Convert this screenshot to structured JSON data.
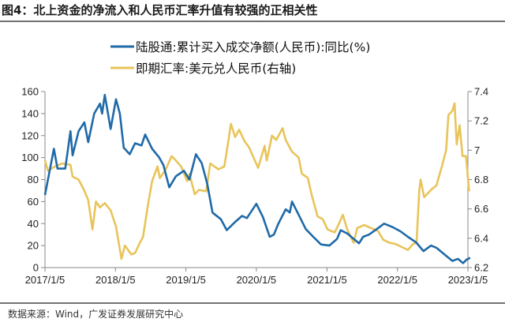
{
  "chart_data": {
    "type": "line",
    "title": "图4：北上资金的净流入和人民币汇率升值有较强的正相关性",
    "source": "数据来源：Wind，广发证券发展研究中心",
    "x_ticks": [
      "2017/1/5",
      "2018/1/5",
      "2019/1/5",
      "2020/1/5",
      "2021/1/5",
      "2022/1/5",
      "2023/1/5"
    ],
    "y_left": {
      "range": [
        0,
        160
      ],
      "ticks": [
        "0",
        "20",
        "40",
        "60",
        "80",
        "100",
        "120",
        "140",
        "160"
      ]
    },
    "y_right": {
      "range": [
        6.2,
        7.4
      ],
      "ticks": [
        "6.2",
        "6.4",
        "6.6",
        "6.8",
        "7",
        "7.2",
        "7.4"
      ]
    },
    "grid": false,
    "legend_placement": "top-center",
    "series": [
      {
        "name": "陆股通:累计买入成交净额(人民币):同比(%)",
        "color": "#1f6aa8",
        "axis": "left",
        "x": [
          "2017-01-05",
          "2017-02-20",
          "2017-03-11",
          "2017-04-20",
          "2017-05-17",
          "2017-05-28",
          "2017-06-28",
          "2017-07-28",
          "2017-08-17",
          "2017-09-17",
          "2017-10-17",
          "2017-10-28",
          "2017-11-11",
          "2017-12-11",
          "2018-01-08",
          "2018-01-28",
          "2018-02-17",
          "2018-03-20",
          "2018-04-17",
          "2018-05-20",
          "2018-06-08",
          "2018-07-14",
          "2018-08-20",
          "2018-09-11",
          "2018-10-11",
          "2018-11-14",
          "2018-12-26",
          "2019-01-23",
          "2019-02-26",
          "2019-03-28",
          "2019-04-26",
          "2019-05-23",
          "2019-07-05",
          "2019-08-05",
          "2019-09-14",
          "2019-10-23",
          "2019-11-17",
          "2020-01-05",
          "2020-02-08",
          "2020-03-14",
          "2020-04-05",
          "2020-04-28",
          "2020-06-05",
          "2020-06-26",
          "2020-07-08",
          "2020-08-11",
          "2020-09-17",
          "2020-10-26",
          "2020-12-05",
          "2021-01-17",
          "2021-02-26",
          "2021-03-17",
          "2021-04-20",
          "2021-05-17",
          "2021-06-20",
          "2021-07-11",
          "2021-08-11",
          "2021-09-20",
          "2021-10-28",
          "2021-12-08",
          "2022-01-20",
          "2022-02-28",
          "2022-04-11",
          "2022-05-20",
          "2022-06-28",
          "2022-07-26",
          "2022-09-05",
          "2022-10-17",
          "2022-11-14",
          "2022-12-11",
          "2022-12-28",
          "2023-01-17"
        ],
        "y": [
          66,
          108,
          90,
          90,
          124,
          102,
          124,
          132,
          114,
          140,
          149,
          140,
          157,
          126,
          153,
          140,
          109,
          103,
          113,
          111,
          121,
          108,
          100,
          93,
          73,
          83,
          88,
          80,
          103,
          95,
          76,
          50,
          44,
          34,
          41,
          47,
          45,
          58,
          46,
          28,
          30,
          40,
          53,
          50,
          60,
          48,
          35,
          28,
          21,
          20,
          26,
          34,
          31,
          27,
          22,
          28,
          30,
          35,
          40,
          37,
          33,
          28,
          23,
          15,
          20,
          18,
          12,
          6,
          8,
          4,
          7,
          9
        ]
      },
      {
        "name": "即期汇率:美元兑人民币(右轴)",
        "color": "#e8c45a",
        "axis": "right",
        "x": [
          "2017-01-05",
          "2017-01-20",
          "2017-02-26",
          "2017-04-05",
          "2017-05-17",
          "2017-05-28",
          "2017-06-28",
          "2017-07-26",
          "2017-08-17",
          "2017-09-08",
          "2017-09-26",
          "2017-10-17",
          "2017-11-11",
          "2017-12-11",
          "2018-01-08",
          "2018-02-05",
          "2018-02-23",
          "2018-03-28",
          "2018-04-17",
          "2018-05-08",
          "2018-05-28",
          "2018-06-23",
          "2018-07-14",
          "2018-08-11",
          "2018-08-23",
          "2018-09-23",
          "2018-10-23",
          "2018-11-14",
          "2018-12-11",
          "2019-01-11",
          "2019-01-23",
          "2019-02-20",
          "2019-03-14",
          "2019-04-20",
          "2019-05-11",
          "2019-06-23",
          "2019-07-23",
          "2019-08-14",
          "2019-08-26",
          "2019-09-17",
          "2019-10-08",
          "2019-11-05",
          "2019-11-28",
          "2020-01-14",
          "2020-02-17",
          "2020-02-28",
          "2020-03-26",
          "2020-04-17",
          "2020-05-20",
          "2020-06-05",
          "2020-07-08",
          "2020-08-11",
          "2020-08-28",
          "2020-09-28",
          "2020-10-17",
          "2020-11-17",
          "2020-12-14",
          "2021-01-08",
          "2021-02-14",
          "2021-03-08",
          "2021-03-28",
          "2021-04-20",
          "2021-05-23",
          "2021-06-11",
          "2021-07-17",
          "2021-08-20",
          "2021-09-26",
          "2021-10-23",
          "2021-11-23",
          "2021-12-28",
          "2022-01-28",
          "2022-02-28",
          "2022-03-26",
          "2022-04-14",
          "2022-04-28",
          "2022-05-05",
          "2022-05-23",
          "2022-06-28",
          "2022-07-26",
          "2022-08-23",
          "2022-09-14",
          "2022-09-26",
          "2022-10-17",
          "2022-10-28",
          "2022-11-08",
          "2022-11-23",
          "2022-12-08",
          "2022-12-26",
          "2023-01-11"
        ],
        "y": [
          6.93,
          6.86,
          6.89,
          6.91,
          6.9,
          6.82,
          6.8,
          6.73,
          6.66,
          6.46,
          6.65,
          6.61,
          6.64,
          6.59,
          6.48,
          6.26,
          6.35,
          6.29,
          6.3,
          6.36,
          6.41,
          6.63,
          6.79,
          6.89,
          6.81,
          6.87,
          6.96,
          6.93,
          6.89,
          6.79,
          6.84,
          6.7,
          6.73,
          6.72,
          6.91,
          6.87,
          6.89,
          7.07,
          7.18,
          7.09,
          7.14,
          7.06,
          7.02,
          6.88,
          7.03,
          6.93,
          7.1,
          7.07,
          7.15,
          7.07,
          6.99,
          6.95,
          6.84,
          6.81,
          6.7,
          6.55,
          6.53,
          6.46,
          6.44,
          6.5,
          6.56,
          6.46,
          6.37,
          6.47,
          6.49,
          6.47,
          6.45,
          6.39,
          6.37,
          6.36,
          6.34,
          6.32,
          6.36,
          6.37,
          6.73,
          6.8,
          6.68,
          6.73,
          6.76,
          6.89,
          7.0,
          7.24,
          7.27,
          7.32,
          7.04,
          7.17,
          6.96,
          6.96,
          6.72
        ]
      }
    ]
  }
}
